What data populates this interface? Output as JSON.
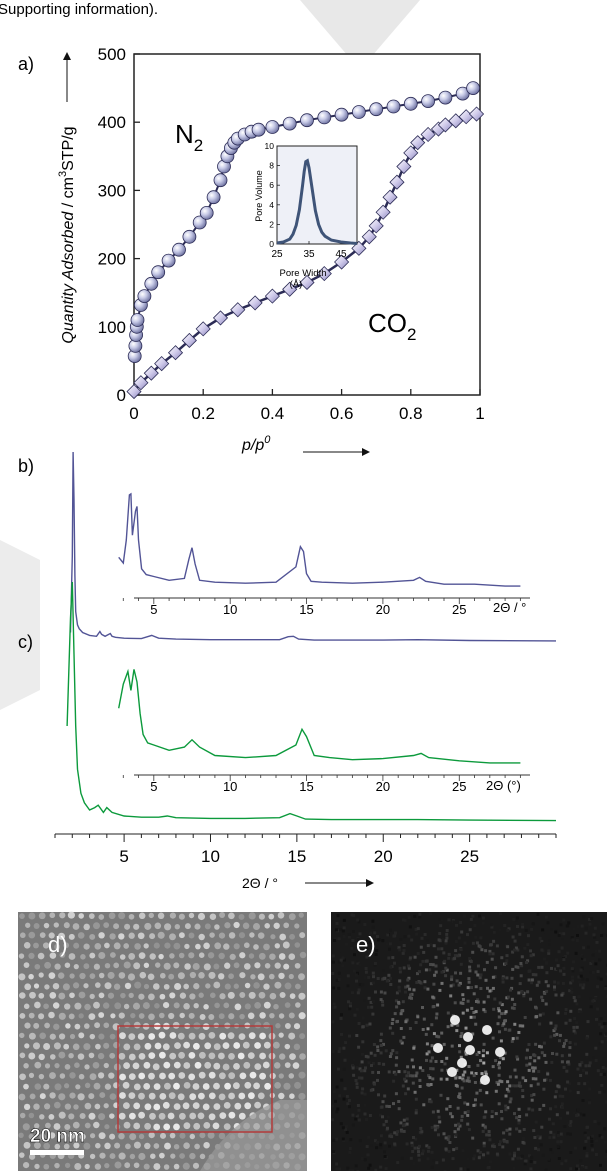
{
  "header": {
    "text": "Supporting information)."
  },
  "panel_labels": {
    "a": "a)",
    "b": "b)",
    "c": "c)",
    "d": "d)",
    "e": "e)"
  },
  "scale_bar": {
    "label": "20 nm"
  },
  "chart_data": [
    {
      "type": "scatter",
      "panel": "a",
      "title": "",
      "xlabel_main": "p/p",
      "xlabel_sup": "0",
      "ylabel_parts": {
        "italic": "Quantity Adsorbed",
        "sep": " / cm",
        "sup": "3",
        "rest": "STP/g"
      },
      "xlim": [
        0,
        1
      ],
      "ylim": [
        0,
        500
      ],
      "xticks": [
        0,
        0.2,
        0.4,
        0.6,
        0.8,
        1
      ],
      "xtick_labels": [
        "0",
        "0.2",
        "0.4",
        "0.6",
        "0.8",
        "1"
      ],
      "yticks": [
        0,
        100,
        200,
        300,
        400,
        500
      ],
      "ytick_labels": [
        "0",
        "100",
        "200",
        "300",
        "400",
        "500"
      ],
      "series": [
        {
          "name": "N",
          "name_sub": "2",
          "marker": "circle",
          "color": "#b9bddf",
          "stroke": "#2c2c56",
          "x": [
            0.002,
            0.004,
            0.006,
            0.008,
            0.01,
            0.02,
            0.03,
            0.05,
            0.07,
            0.1,
            0.13,
            0.16,
            0.19,
            0.21,
            0.23,
            0.25,
            0.26,
            0.27,
            0.28,
            0.29,
            0.3,
            0.32,
            0.34,
            0.36,
            0.4,
            0.45,
            0.5,
            0.55,
            0.6,
            0.65,
            0.7,
            0.75,
            0.8,
            0.85,
            0.9,
            0.95,
            0.98
          ],
          "y": [
            57,
            72,
            88,
            100,
            110,
            132,
            145,
            163,
            180,
            197,
            213,
            232,
            253,
            267,
            290,
            315,
            335,
            350,
            362,
            370,
            376,
            382,
            386,
            389,
            393,
            398,
            403,
            407,
            411,
            415,
            419,
            423,
            427,
            431,
            436,
            442,
            450
          ]
        },
        {
          "name": "CO",
          "name_sub": "2",
          "marker": "diamond",
          "color": "#d6d2ee",
          "stroke": "#2c2c56",
          "x": [
            0.0,
            0.02,
            0.05,
            0.08,
            0.12,
            0.16,
            0.2,
            0.25,
            0.3,
            0.35,
            0.4,
            0.45,
            0.5,
            0.55,
            0.6,
            0.65,
            0.68,
            0.7,
            0.72,
            0.74,
            0.76,
            0.78,
            0.8,
            0.82,
            0.85,
            0.88,
            0.9,
            0.93,
            0.96,
            0.99
          ],
          "y": [
            5,
            18,
            32,
            46,
            62,
            80,
            97,
            113,
            125,
            135,
            145,
            155,
            165,
            178,
            195,
            215,
            232,
            248,
            268,
            290,
            312,
            335,
            355,
            370,
            382,
            390,
            396,
            402,
            408,
            412
          ]
        }
      ]
    },
    {
      "type": "line",
      "panel": "a-inset",
      "xlabel": "Pore Width",
      "xlabel_unit": "(Å)",
      "ylabel": "Pore Volume",
      "xlim": [
        25,
        50
      ],
      "ylim": [
        0,
        10
      ],
      "xticks": [
        25,
        35,
        45
      ],
      "yticks": [
        0,
        2,
        4,
        6,
        8,
        10
      ],
      "xtick_labels": [
        "25",
        "35",
        "45"
      ],
      "ytick_labels": [
        "0",
        "2",
        "4",
        "6",
        "8",
        "10"
      ],
      "series": [
        {
          "name": "",
          "color": "#3f5478",
          "x": [
            25,
            27,
            29,
            30,
            31,
            32,
            33,
            33.5,
            34,
            34.5,
            35,
            36,
            37,
            38,
            39,
            40,
            42,
            45,
            48,
            50
          ],
          "y": [
            0.1,
            0.2,
            0.5,
            1.0,
            1.9,
            3.5,
            6.0,
            7.4,
            8.4,
            8.5,
            7.8,
            5.6,
            3.4,
            2.0,
            1.2,
            0.8,
            0.4,
            0.2,
            0.1,
            0.05
          ]
        }
      ]
    },
    {
      "type": "line",
      "panel": "b",
      "series_color": "#525496",
      "xlim": [
        1,
        30
      ],
      "main_x": [
        1.9,
        2.0,
        2.05,
        2.1,
        2.15,
        2.2,
        2.3,
        2.4,
        2.6,
        3.0,
        3.4,
        3.6,
        3.7,
        3.9,
        4.2,
        4.3,
        4.5,
        5,
        6,
        6.6,
        7,
        8,
        10,
        12,
        14,
        14.5,
        14.8,
        15.1,
        16,
        18,
        20,
        22,
        25,
        30
      ],
      "main_y": [
        0.05,
        0.45,
        1.0,
        0.75,
        0.35,
        0.16,
        0.09,
        0.07,
        0.05,
        0.035,
        0.03,
        0.055,
        0.04,
        0.03,
        0.045,
        0.03,
        0.025,
        0.02,
        0.018,
        0.035,
        0.02,
        0.015,
        0.012,
        0.012,
        0.012,
        0.028,
        0.03,
        0.015,
        0.01,
        0.01,
        0.01,
        0.012,
        0.008,
        0.006
      ],
      "inset": {
        "xlim": [
          2,
          29.5
        ],
        "xticks": [
          5,
          10,
          15,
          20,
          25
        ],
        "xtick_labels": [
          "5",
          "10",
          "15",
          "20",
          "25"
        ],
        "axis_label": "2Θ / °",
        "x": [
          2.7,
          3.0,
          3.2,
          3.4,
          3.5,
          3.6,
          3.8,
          3.9,
          4.0,
          4.2,
          4.5,
          5,
          6,
          7,
          7.3,
          7.5,
          7.7,
          8,
          9,
          11,
          13,
          14.3,
          14.6,
          14.8,
          15.0,
          15.3,
          16,
          18,
          20,
          22,
          22.4,
          22.8,
          24,
          26,
          28,
          29
        ],
        "y": [
          0.32,
          0.26,
          0.5,
          0.97,
          0.98,
          0.55,
          0.8,
          0.85,
          0.5,
          0.2,
          0.14,
          0.12,
          0.08,
          0.1,
          0.3,
          0.42,
          0.25,
          0.08,
          0.06,
          0.05,
          0.06,
          0.22,
          0.43,
          0.38,
          0.15,
          0.07,
          0.06,
          0.05,
          0.06,
          0.08,
          0.11,
          0.07,
          0.04,
          0.04,
          0.02,
          0.02
        ]
      }
    },
    {
      "type": "line",
      "panel": "c",
      "series_color": "#0c9a3c",
      "xlim": [
        1,
        30
      ],
      "main_x": [
        1.7,
        1.9,
        2.0,
        2.1,
        2.2,
        2.3,
        2.5,
        2.7,
        3.0,
        3.3,
        3.5,
        3.8,
        4.0,
        4.3,
        5,
        6,
        7,
        7.5,
        8,
        10,
        12,
        14,
        14.6,
        15.0,
        15.5,
        17,
        20,
        22,
        25,
        30
      ],
      "main_y": [
        0.4,
        0.85,
        1.0,
        0.7,
        0.4,
        0.22,
        0.12,
        0.08,
        0.05,
        0.06,
        0.07,
        0.04,
        0.06,
        0.04,
        0.025,
        0.02,
        0.02,
        0.025,
        0.018,
        0.015,
        0.015,
        0.018,
        0.035,
        0.025,
        0.012,
        0.01,
        0.01,
        0.01,
        0.008,
        0.006
      ],
      "inset": {
        "xlim": [
          2,
          29.5
        ],
        "xticks": [
          5,
          10,
          15,
          20,
          25
        ],
        "xtick_labels": [
          "5",
          "10",
          "15",
          "20",
          "25"
        ],
        "axis_label": "2Θ (°)",
        "x": [
          2.7,
          3.0,
          3.3,
          3.5,
          3.7,
          3.9,
          4.1,
          4.3,
          4.6,
          5,
          6,
          7,
          7.5,
          8,
          9,
          11,
          13,
          14.3,
          14.7,
          15.0,
          15.5,
          16.5,
          18,
          20,
          22,
          22.5,
          23,
          25,
          27,
          29
        ],
        "y": [
          0.55,
          0.78,
          0.9,
          0.72,
          0.92,
          0.8,
          0.5,
          0.3,
          0.22,
          0.2,
          0.15,
          0.18,
          0.25,
          0.18,
          0.1,
          0.08,
          0.1,
          0.2,
          0.35,
          0.28,
          0.1,
          0.08,
          0.06,
          0.07,
          0.1,
          0.12,
          0.08,
          0.05,
          0.03,
          0.03
        ]
      }
    },
    {
      "type": "line",
      "panel": "bc-axis",
      "xlabel": "2Θ / °",
      "xlim": [
        1,
        30
      ],
      "xticks": [
        5,
        10,
        15,
        20,
        25
      ],
      "xtick_labels": [
        "5",
        "10",
        "15",
        "20",
        "25"
      ]
    }
  ]
}
